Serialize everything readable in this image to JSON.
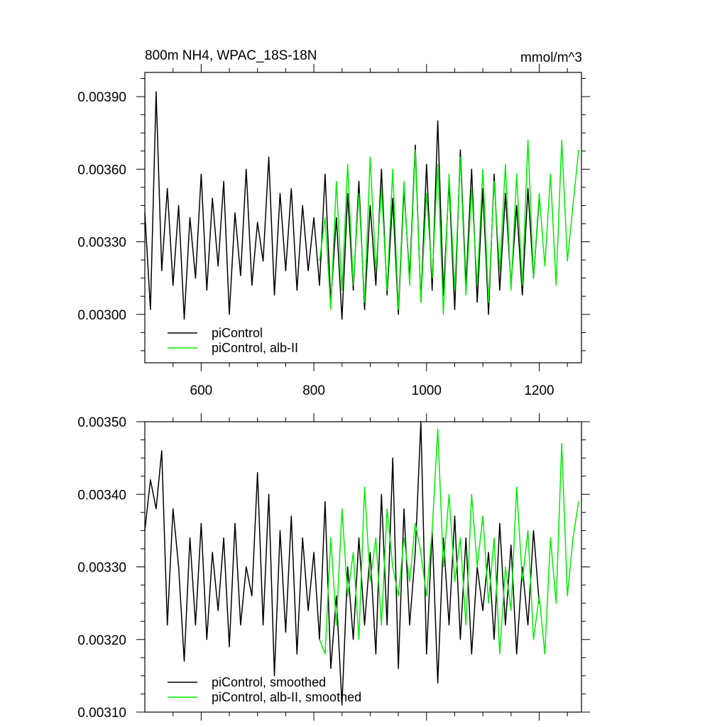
{
  "chart_data": [
    {
      "type": "line",
      "title": "800m NH4, WPAC_18S-18N",
      "units": "mmol/m^3",
      "xlabel": "",
      "ylabel": "",
      "xlim": [
        500,
        1275
      ],
      "ylim": [
        0.0028,
        0.004
      ],
      "xticks": [
        600,
        800,
        1000,
        1200
      ],
      "xtick_labels": [
        "600",
        "800",
        "1000",
        "1200"
      ],
      "yticks": [
        0.003,
        0.0033,
        0.0036,
        0.0039
      ],
      "ytick_labels": [
        "0.00300",
        "0.00330",
        "0.00360",
        "0.00390"
      ],
      "legend_position": "bottom-left",
      "grid": false,
      "series": [
        {
          "name": "piControl",
          "color": "#000000",
          "x": [
            500,
            510,
            520,
            530,
            540,
            550,
            560,
            570,
            580,
            590,
            600,
            610,
            620,
            630,
            640,
            650,
            660,
            670,
            680,
            690,
            700,
            710,
            720,
            730,
            740,
            750,
            760,
            770,
            780,
            790,
            800,
            810,
            820,
            830,
            840,
            850,
            860,
            870,
            880,
            890,
            900,
            910,
            920,
            930,
            940,
            950,
            960,
            970,
            980,
            990,
            1000,
            1010,
            1020,
            1030,
            1040,
            1050,
            1060,
            1070,
            1080,
            1090,
            1100,
            1110,
            1120,
            1130,
            1140,
            1150,
            1160,
            1170,
            1180,
            1190,
            1200
          ],
          "values": [
            0.00342,
            0.00302,
            0.00392,
            0.00318,
            0.00352,
            0.00312,
            0.00345,
            0.00298,
            0.0034,
            0.00315,
            0.00358,
            0.0031,
            0.00348,
            0.0032,
            0.00355,
            0.003,
            0.00342,
            0.00316,
            0.0036,
            0.00312,
            0.00338,
            0.00322,
            0.00365,
            0.00308,
            0.0035,
            0.00318,
            0.00352,
            0.0031,
            0.00345,
            0.00318,
            0.0034,
            0.00312,
            0.00358,
            0.00305,
            0.0034,
            0.00298,
            0.0035,
            0.0031,
            0.00355,
            0.00302,
            0.00345,
            0.00312,
            0.0036,
            0.00308,
            0.00348,
            0.003,
            0.00352,
            0.00315,
            0.0037,
            0.00305,
            0.00362,
            0.0031,
            0.0038,
            0.00308,
            0.00355,
            0.00302,
            0.00368,
            0.00312,
            0.0036,
            0.00305,
            0.00352,
            0.003,
            0.00358,
            0.0031,
            0.0035,
            0.00312,
            0.00345,
            0.00308,
            0.00352,
            0.00315,
            0.00348
          ]
        },
        {
          "name": "piControl, alb-II",
          "color": "#00ee00",
          "x": [
            810,
            820,
            830,
            840,
            850,
            860,
            870,
            880,
            890,
            900,
            910,
            920,
            930,
            940,
            950,
            960,
            970,
            980,
            990,
            1000,
            1010,
            1020,
            1030,
            1040,
            1050,
            1060,
            1070,
            1080,
            1090,
            1100,
            1110,
            1120,
            1130,
            1140,
            1150,
            1160,
            1170,
            1180,
            1190,
            1200,
            1210,
            1220,
            1230,
            1240,
            1250,
            1260,
            1270
          ],
          "values": [
            0.00322,
            0.0034,
            0.00302,
            0.00355,
            0.0031,
            0.00362,
            0.00312,
            0.0035,
            0.00305,
            0.00365,
            0.00318,
            0.00352,
            0.0031,
            0.0036,
            0.00302,
            0.00355,
            0.00312,
            0.00368,
            0.00305,
            0.0035,
            0.00315,
            0.00362,
            0.003,
            0.00358,
            0.0031,
            0.00365,
            0.00308,
            0.00352,
            0.00312,
            0.0036,
            0.00305,
            0.00355,
            0.00318,
            0.00362,
            0.0031,
            0.00358,
            0.00312,
            0.00372,
            0.00315,
            0.0035,
            0.0032,
            0.00358,
            0.00312,
            0.00372,
            0.00322,
            0.00345,
            0.00368
          ]
        }
      ]
    },
    {
      "type": "line",
      "title": "",
      "xlabel": "",
      "ylabel": "",
      "xlim": [
        500,
        1275
      ],
      "ylim": [
        0.0031,
        0.0035
      ],
      "xticks": [
        600,
        800,
        1000,
        1200
      ],
      "yticks": [
        0.0031,
        0.0032,
        0.0033,
        0.0034,
        0.0035
      ],
      "ytick_labels": [
        "0.00310",
        "0.00320",
        "0.00330",
        "0.00340",
        "0.00350"
      ],
      "legend_position": "bottom-left",
      "grid": false,
      "series": [
        {
          "name": "piControl, smoothed",
          "color": "#000000",
          "x": [
            500,
            510,
            520,
            530,
            540,
            550,
            560,
            570,
            580,
            590,
            600,
            610,
            620,
            630,
            640,
            650,
            660,
            670,
            680,
            690,
            700,
            710,
            720,
            730,
            740,
            750,
            760,
            770,
            780,
            790,
            800,
            810,
            820,
            830,
            840,
            850,
            860,
            870,
            880,
            890,
            900,
            910,
            920,
            930,
            940,
            950,
            960,
            970,
            980,
            990,
            1000,
            1010,
            1020,
            1030,
            1040,
            1050,
            1060,
            1070,
            1080,
            1090,
            1100,
            1110,
            1120,
            1130,
            1140,
            1150,
            1160,
            1170,
            1180,
            1190,
            1200
          ],
          "values": [
            0.00335,
            0.00342,
            0.00338,
            0.00346,
            0.00322,
            0.00338,
            0.0033,
            0.00317,
            0.00334,
            0.00322,
            0.00336,
            0.0032,
            0.00332,
            0.00324,
            0.00334,
            0.00319,
            0.00336,
            0.00322,
            0.0033,
            0.00326,
            0.00343,
            0.00322,
            0.0034,
            0.00315,
            0.00335,
            0.00321,
            0.00337,
            0.00318,
            0.00334,
            0.00324,
            0.00332,
            0.0032,
            0.00339,
            0.00316,
            0.00326,
            0.00311,
            0.0033,
            0.0032,
            0.00334,
            0.00322,
            0.00332,
            0.00318,
            0.0034,
            0.00322,
            0.00345,
            0.00316,
            0.00338,
            0.00322,
            0.00332,
            0.0035,
            0.00318,
            0.00335,
            0.00314,
            0.00334,
            0.00322,
            0.00337,
            0.0032,
            0.00334,
            0.00318,
            0.0033,
            0.00324,
            0.00332,
            0.0032,
            0.00336,
            0.00322,
            0.00333,
            0.00318,
            0.0033,
            0.00322,
            0.00335,
            0.00325
          ]
        },
        {
          "name": "piControl, alb-II, smoothed",
          "color": "#00ee00",
          "x": [
            810,
            820,
            830,
            840,
            850,
            860,
            870,
            880,
            890,
            900,
            910,
            920,
            930,
            940,
            950,
            960,
            970,
            980,
            990,
            1000,
            1010,
            1020,
            1030,
            1040,
            1050,
            1060,
            1070,
            1080,
            1090,
            1100,
            1110,
            1120,
            1130,
            1140,
            1150,
            1160,
            1170,
            1180,
            1190,
            1200,
            1210,
            1220,
            1230,
            1240,
            1250,
            1260,
            1270
          ],
          "values": [
            0.0032,
            0.00318,
            0.00334,
            0.00322,
            0.00338,
            0.00326,
            0.00332,
            0.0032,
            0.00341,
            0.00328,
            0.00334,
            0.00322,
            0.00338,
            0.0033,
            0.00326,
            0.00334,
            0.00328,
            0.00336,
            0.00332,
            0.00326,
            0.00335,
            0.00349,
            0.0033,
            0.0034,
            0.00328,
            0.00334,
            0.00322,
            0.0034,
            0.0033,
            0.00337,
            0.00325,
            0.00334,
            0.00318,
            0.0033,
            0.00324,
            0.00341,
            0.00328,
            0.00335,
            0.0032,
            0.00326,
            0.00318,
            0.00334,
            0.00325,
            0.00347,
            0.00326,
            0.00334,
            0.00339
          ]
        }
      ]
    }
  ]
}
